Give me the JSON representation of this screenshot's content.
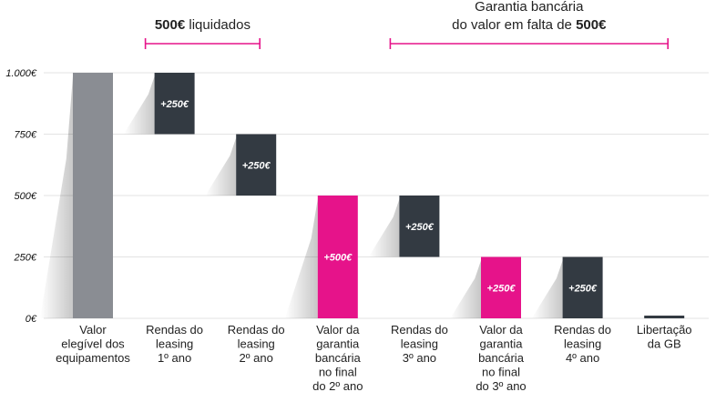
{
  "chart_data": {
    "type": "bar",
    "subtype": "waterfall",
    "ylim": [
      0,
      1000
    ],
    "yticks": [
      {
        "value": 0,
        "label": "0€"
      },
      {
        "value": 250,
        "label": "250€"
      },
      {
        "value": 500,
        "label": "500€"
      },
      {
        "value": 750,
        "label": "750€"
      },
      {
        "value": 1000,
        "label": "1.000€"
      }
    ],
    "grid": true,
    "categories": [
      [
        "Valor",
        "elegível dos",
        "equipamentos"
      ],
      [
        "Rendas do",
        "leasing",
        "1º ano"
      ],
      [
        "Rendas do",
        "leasing",
        "2º ano"
      ],
      [
        "Valor da",
        "garantia",
        "bancária",
        "no final",
        "do 2º ano"
      ],
      [
        "Rendas do",
        "leasing",
        "3º ano"
      ],
      [
        "Valor da",
        "garantia",
        "bancária",
        "no final",
        "do 3º ano"
      ],
      [
        "Rendas do",
        "leasing",
        "4º ano"
      ],
      [
        "Libertação",
        "da GB"
      ]
    ],
    "bars": [
      {
        "start": 0,
        "end": 1000,
        "label": "",
        "color": "#8a8d93"
      },
      {
        "start": 750,
        "end": 1000,
        "label": "+250€",
        "color": "#333a42"
      },
      {
        "start": 500,
        "end": 750,
        "label": "+250€",
        "color": "#333a42"
      },
      {
        "start": 0,
        "end": 500,
        "label": "+500€",
        "color": "#e6138a"
      },
      {
        "start": 250,
        "end": 500,
        "label": "+250€",
        "color": "#333a42"
      },
      {
        "start": 0,
        "end": 250,
        "label": "+250€",
        "color": "#e6138a"
      },
      {
        "start": 0,
        "end": 250,
        "label": "+250€",
        "color": "#333a42"
      },
      {
        "start": 0,
        "end": 5,
        "label": "",
        "color": "#333a42"
      }
    ],
    "annotations": [
      {
        "from_category": 1,
        "to_category": 2,
        "lines": [
          [
            {
              "text": "500€",
              "bold": true
            },
            {
              "text": " liquidados",
              "bold": false
            }
          ]
        ]
      },
      {
        "from_category": 4,
        "to_category": 7,
        "lines": [
          [
            {
              "text": "Garantia bancária",
              "bold": false
            }
          ],
          [
            {
              "text": "do valor em falta de ",
              "bold": false
            },
            {
              "text": "500€",
              "bold": true
            }
          ]
        ]
      }
    ],
    "colors": {
      "accent": "#e6138a",
      "dark": "#333a42",
      "gray": "#8a8d93",
      "grid": "#e3e3e3"
    }
  }
}
